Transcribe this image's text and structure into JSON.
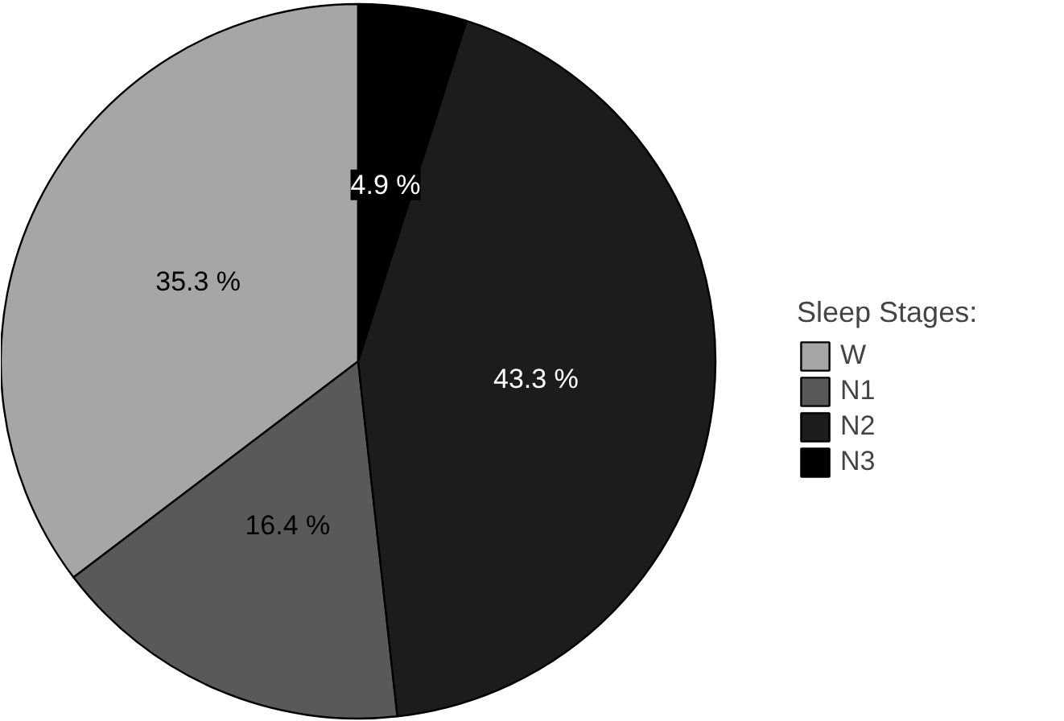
{
  "chart_data": {
    "type": "pie",
    "legend_title": "Sleep Stages:",
    "legend": "right",
    "categories": [
      "W",
      "N1",
      "N2",
      "N3"
    ],
    "values": [
      35.3,
      16.4,
      43.3,
      4.9
    ],
    "colors": [
      "#a6a6a6",
      "#595959",
      "#1c1c1c",
      "#000000"
    ],
    "value_labels": [
      "35.3 %",
      "16.4 %",
      "43.3 %",
      "4.9 %"
    ]
  }
}
